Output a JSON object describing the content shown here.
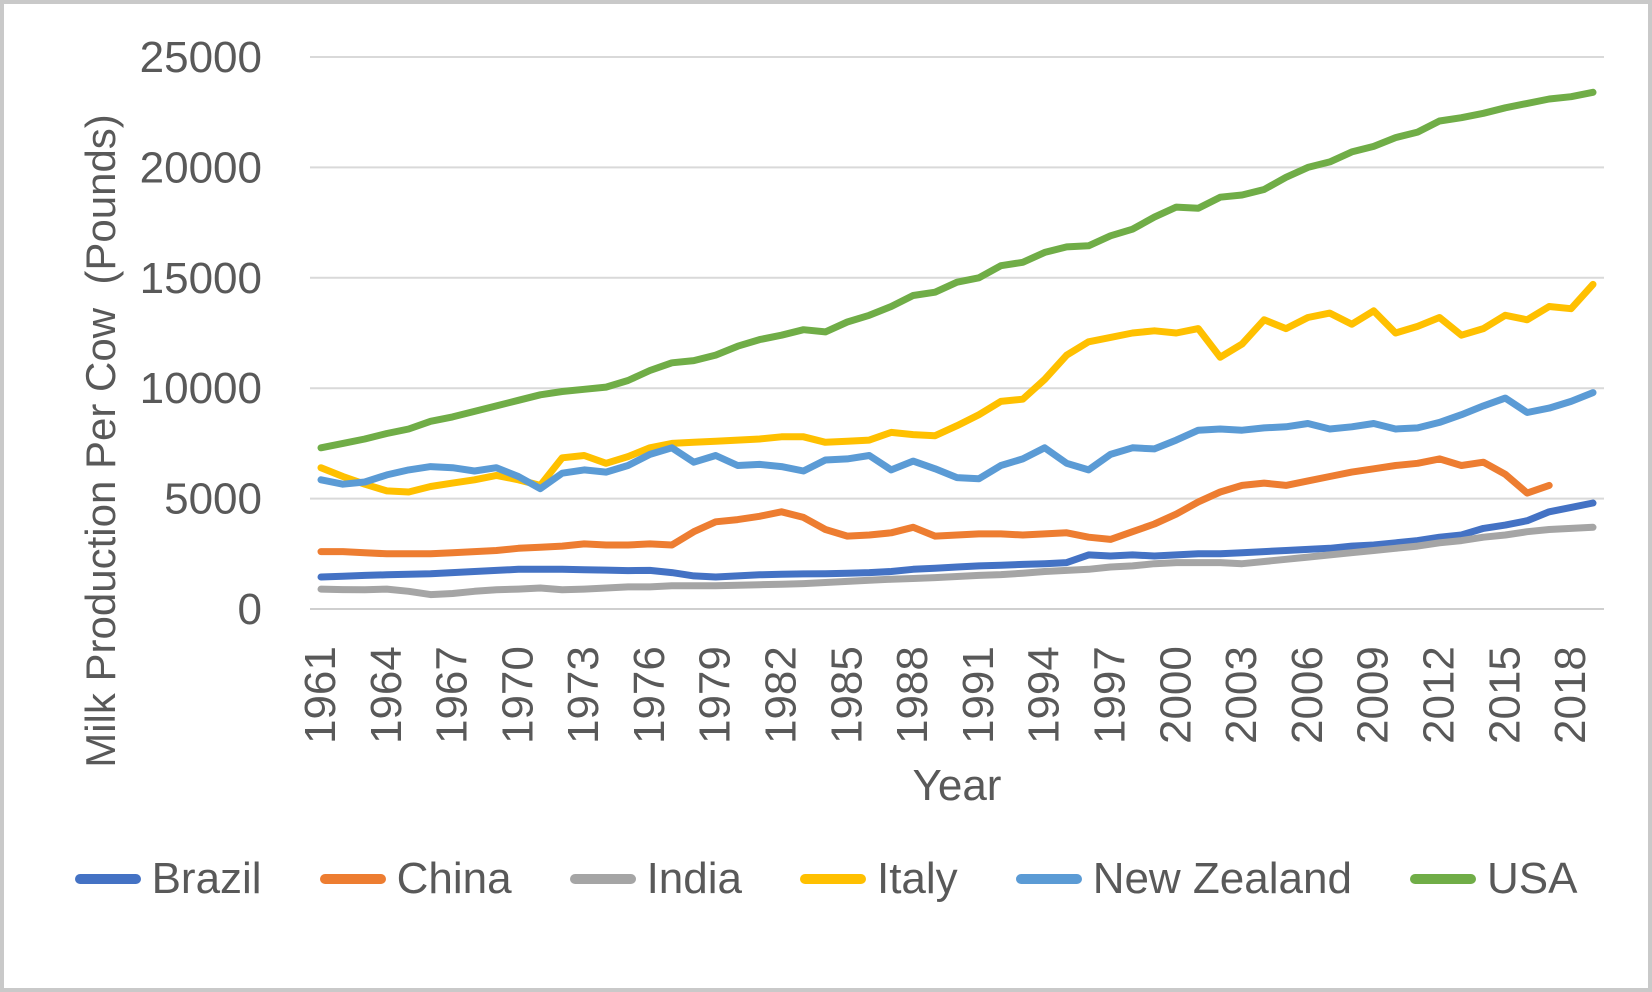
{
  "chart_data": {
    "type": "line",
    "title": "",
    "ylabel": "Milk Production Per Cow  (Pounds)",
    "xlabel": "Year",
    "ylim": [
      0,
      25000
    ],
    "yticks": [
      0,
      5000,
      10000,
      15000,
      20000,
      25000
    ],
    "x_start_year": 1961,
    "x_end_year": 2019,
    "xtick_years": [
      1961,
      1964,
      1967,
      1970,
      1973,
      1976,
      1979,
      1982,
      1985,
      1988,
      1991,
      1994,
      1997,
      2000,
      2003,
      2006,
      2009,
      2012,
      2015,
      2018
    ],
    "grid": true,
    "legend_position": "bottom",
    "colors": {
      "text": "#595959",
      "gridline": "#D9D9D9",
      "axis_line": "#CFCFCF",
      "background": "#FFFFFF",
      "frame_border": "#C9C9C9"
    },
    "series": [
      {
        "name": "Brazil",
        "color": "#4472C4",
        "start_year": 1961,
        "values": [
          1450,
          1480,
          1520,
          1550,
          1570,
          1600,
          1650,
          1700,
          1750,
          1800,
          1800,
          1800,
          1780,
          1760,
          1740,
          1750,
          1650,
          1500,
          1450,
          1500,
          1550,
          1575,
          1590,
          1600,
          1620,
          1650,
          1700,
          1800,
          1850,
          1900,
          1950,
          1980,
          2020,
          2050,
          2100,
          2450,
          2400,
          2450,
          2400,
          2450,
          2500,
          2500,
          2550,
          2600,
          2650,
          2700,
          2750,
          2850,
          2900,
          3000,
          3100,
          3250,
          3350,
          3650,
          3800,
          4000,
          4400,
          4600,
          4800
        ]
      },
      {
        "name": "China",
        "color": "#ED7D31",
        "start_year": 1961,
        "values": [
          2600,
          2600,
          2550,
          2500,
          2500,
          2500,
          2550,
          2600,
          2650,
          2750,
          2800,
          2850,
          2950,
          2900,
          2900,
          2950,
          2900,
          3500,
          3950,
          4050,
          4200,
          4400,
          4150,
          3600,
          3300,
          3350,
          3450,
          3700,
          3300,
          3350,
          3400,
          3400,
          3350,
          3400,
          3450,
          3250,
          3150,
          3500,
          3850,
          4300,
          4850,
          5300,
          5600,
          5700,
          5600,
          5800,
          6000,
          6200,
          6350,
          6500,
          6600,
          6800,
          6500,
          6650,
          6100,
          5250,
          5600
        ]
      },
      {
        "name": "India",
        "color": "#A5A5A5",
        "start_year": 1961,
        "values": [
          900,
          880,
          870,
          900,
          800,
          650,
          700,
          800,
          870,
          900,
          950,
          870,
          900,
          950,
          1000,
          1000,
          1050,
          1050,
          1050,
          1080,
          1100,
          1120,
          1150,
          1200,
          1250,
          1300,
          1350,
          1380,
          1420,
          1470,
          1520,
          1560,
          1620,
          1700,
          1750,
          1800,
          1900,
          1950,
          2050,
          2100,
          2100,
          2100,
          2050,
          2150,
          2250,
          2350,
          2450,
          2550,
          2650,
          2750,
          2850,
          3000,
          3100,
          3250,
          3350,
          3500,
          3600,
          3650,
          3700
        ]
      },
      {
        "name": "Italy",
        "color": "#FFC000",
        "start_year": 1961,
        "values": [
          6400,
          6000,
          5650,
          5350,
          5300,
          5550,
          5700,
          5850,
          6050,
          5850,
          5600,
          6850,
          6950,
          6600,
          6900,
          7300,
          7500,
          7550,
          7600,
          7650,
          7700,
          7800,
          7800,
          7550,
          7600,
          7650,
          8000,
          7900,
          7850,
          8300,
          8800,
          9400,
          9500,
          10400,
          11500,
          12100,
          12300,
          12500,
          12600,
          12500,
          12700,
          11400,
          12000,
          13100,
          12700,
          13200,
          13400,
          12900,
          13500,
          12500,
          12800,
          13200,
          12400,
          12700,
          13300,
          13100,
          13700,
          13600,
          14700
        ]
      },
      {
        "name": "New Zealand",
        "color": "#5B9BD5",
        "start_year": 1961,
        "values": [
          5850,
          5650,
          5750,
          6075,
          6300,
          6450,
          6400,
          6250,
          6400,
          6000,
          5450,
          6150,
          6300,
          6200,
          6500,
          7000,
          7300,
          6650,
          6950,
          6500,
          6550,
          6450,
          6250,
          6750,
          6800,
          6950,
          6300,
          6700,
          6350,
          5950,
          5900,
          6500,
          6800,
          7300,
          6600,
          6300,
          7000,
          7300,
          7250,
          7650,
          8100,
          8150,
          8100,
          8200,
          8250,
          8400,
          8150,
          8250,
          8400,
          8150,
          8200,
          8450,
          8800,
          9200,
          9550,
          8900,
          9100,
          9400,
          9800
        ]
      },
      {
        "name": "USA",
        "color": "#70AD47",
        "start_year": 1961,
        "values": [
          7300,
          7500,
          7700,
          7950,
          8150,
          8500,
          8700,
          8950,
          9200,
          9450,
          9700,
          9850,
          9950,
          10050,
          10350,
          10800,
          11150,
          11250,
          11500,
          11900,
          12200,
          12400,
          12650,
          12550,
          13000,
          13300,
          13700,
          14200,
          14350,
          14800,
          15000,
          15550,
          15700,
          16150,
          16400,
          16450,
          16900,
          17200,
          17750,
          18200,
          18150,
          18650,
          18750,
          19000,
          19550,
          20000,
          20250,
          20700,
          20950,
          21350,
          21600,
          22100,
          22250,
          22450,
          22700,
          22900,
          23100,
          23200,
          23400
        ]
      }
    ]
  }
}
